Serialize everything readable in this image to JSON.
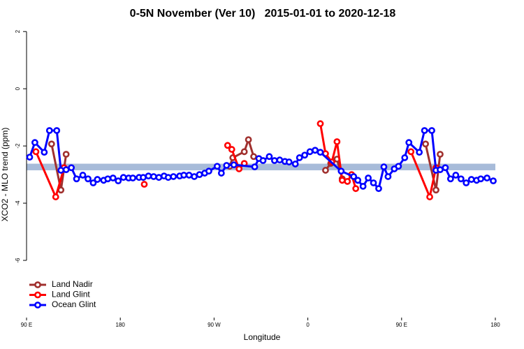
{
  "chart_data": {
    "type": "line",
    "title": "0-5N November (Ver 10)   2015-01-01 to 2020-12-18",
    "x_label": "Longitude",
    "y_label": "XCO2 - MLO trend (ppm)",
    "xlim": [
      90,
      540
    ],
    "xticks": [
      {
        "value": 90,
        "label": "90 E"
      },
      180,
      {
        "value": 270,
        "label": "90 W"
      },
      {
        "value": 360,
        "label": "0"
      },
      {
        "value": 450,
        "label": "90 E"
      },
      {
        "value": 540,
        "label": "180"
      }
    ],
    "ylim": [
      -8,
      2.2
    ],
    "yticks": [
      2,
      0,
      -2,
      -4,
      -6
    ],
    "band": {
      "range": [
        -2.62,
        -2.85
      ],
      "color": "#a7bbd9"
    },
    "legend": "bottom-left",
    "series": [
      {
        "name": "Land Nadir",
        "color": "#a0302e",
        "x": [
          114,
          123,
          128,
          200,
          285,
          288,
          299,
          303,
          308,
          340,
          377,
          382,
          388,
          393,
          430,
          473,
          483,
          487
        ],
        "values": [
          -1.93,
          -3.54,
          -2.29,
          null,
          -2.71,
          -2.41,
          -2.2,
          -1.78,
          -2.37,
          null,
          -2.85,
          -2.61,
          -2.46,
          -3.15,
          null,
          -1.93,
          -3.54,
          -2.29
        ]
      },
      {
        "name": "Land Glint",
        "color": "#ff0000",
        "x": [
          99,
          118,
          126,
          160,
          203,
          240,
          283,
          287,
          294,
          299,
          340,
          372,
          377,
          383,
          388,
          393,
          398,
          402,
          406,
          430,
          459,
          477,
          483
        ],
        "values": [
          -2.2,
          -3.78,
          -2.76,
          null,
          -3.34,
          null,
          -1.98,
          -2.12,
          -2.8,
          -2.61,
          null,
          -1.22,
          -2.27,
          -2.56,
          -1.85,
          -3.2,
          -3.24,
          -3.0,
          -3.49,
          null,
          -2.2,
          -3.78,
          -2.76
        ]
      },
      {
        "name": "Ocean Glint",
        "color": "#0000ff",
        "x": [
          93,
          98,
          107,
          112,
          119,
          123,
          128,
          133,
          138,
          144,
          149,
          154,
          158,
          164,
          168,
          173,
          178,
          183,
          188,
          192,
          198,
          202,
          207,
          212,
          217,
          222,
          226,
          231,
          237,
          241,
          246,
          251,
          256,
          261,
          265,
          273,
          277,
          282,
          289,
          309,
          313,
          317,
          323,
          328,
          333,
          338,
          342,
          348,
          352,
          357,
          362,
          367,
          372,
          392,
          404,
          408,
          413,
          418,
          423,
          428,
          433,
          437,
          443,
          447,
          453,
          457,
          467,
          472,
          479,
          483,
          487,
          492,
          497,
          502,
          507,
          512,
          517,
          522,
          526,
          532,
          538
        ],
        "values": [
          -2.39,
          -1.88,
          -2.22,
          -1.46,
          -1.46,
          -2.85,
          -2.83,
          -2.76,
          -3.15,
          -3.02,
          -3.15,
          -3.29,
          -3.17,
          -3.2,
          -3.15,
          -3.12,
          -3.22,
          -3.1,
          -3.12,
          -3.12,
          -3.1,
          -3.1,
          -3.05,
          -3.07,
          -3.1,
          -3.05,
          -3.1,
          -3.07,
          -3.05,
          -3.02,
          -3.02,
          -3.07,
          -3.0,
          -2.95,
          -2.88,
          -2.71,
          -2.95,
          -2.68,
          -2.66,
          -2.73,
          -2.44,
          -2.51,
          -2.37,
          -2.51,
          -2.49,
          -2.54,
          -2.56,
          -2.63,
          -2.41,
          -2.32,
          -2.2,
          -2.15,
          -2.22,
          -2.88,
          -3.07,
          -3.2,
          -3.41,
          -3.12,
          -3.29,
          -3.49,
          -2.73,
          -3.07,
          -2.8,
          -2.71,
          -2.41,
          -1.88,
          -2.22,
          -1.46,
          -1.46,
          -2.85,
          -2.83,
          -2.76,
          -3.15,
          -3.02,
          -3.15,
          -3.29,
          -3.17,
          -3.2,
          -3.15,
          -3.12,
          -3.22
        ]
      }
    ]
  }
}
